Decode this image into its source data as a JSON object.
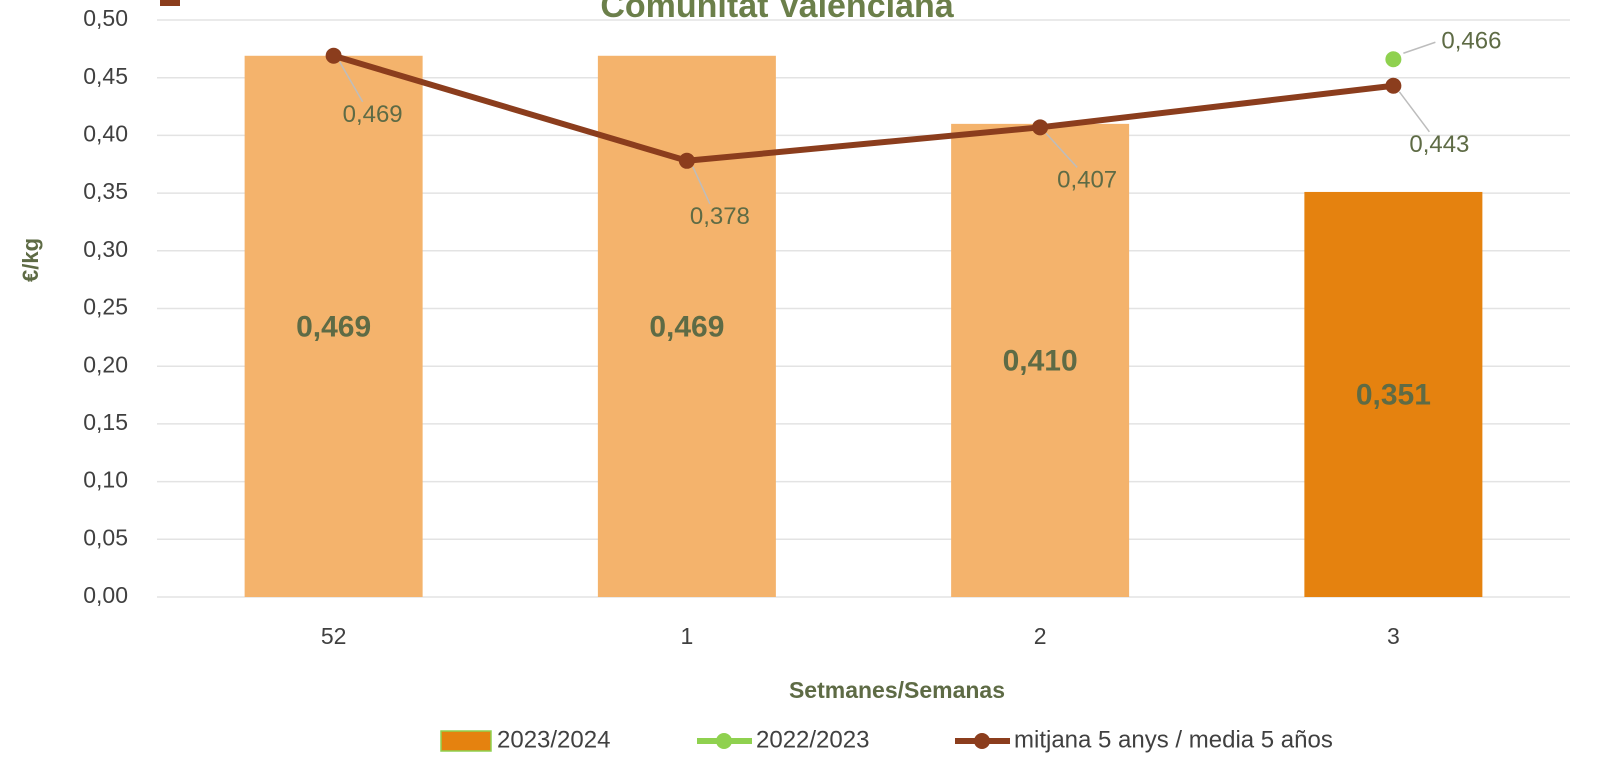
{
  "chart_data": {
    "type": "bar",
    "title": "Comunitat Valenciana",
    "x_label": "Setmanes/Semanas",
    "y_label": "€/kg",
    "categories": [
      "52",
      "1",
      "2",
      "3"
    ],
    "ylim": [
      0,
      0.5
    ],
    "yticks": [
      {
        "value": 0,
        "label": "0,00"
      },
      {
        "value": 0.05,
        "label": "0,05"
      },
      {
        "value": 0.1,
        "label": "0,10"
      },
      {
        "value": 0.15,
        "label": "0,15"
      },
      {
        "value": 0.2,
        "label": "0,20"
      },
      {
        "value": 0.25,
        "label": "0,25"
      },
      {
        "value": 0.3,
        "label": "0,30"
      },
      {
        "value": 0.35,
        "label": "0,35"
      },
      {
        "value": 0.4,
        "label": "0,40"
      },
      {
        "value": 0.45,
        "label": "0,45"
      },
      {
        "value": 0.5,
        "label": "0,50"
      }
    ],
    "grid": true,
    "series": [
      {
        "name": "2023/2024",
        "type": "bar",
        "color": "#e5820f",
        "colors": [
          "#f4b36c",
          "#f4b36c",
          "#f4b36c",
          "#e5820f"
        ],
        "values": [
          0.469,
          0.469,
          0.41,
          0.351
        ],
        "value_labels": [
          "0,469",
          "0,469",
          "0,410",
          "0,351"
        ]
      },
      {
        "name": "2022/2023",
        "type": "line",
        "color": "#8fd14f",
        "values": [
          null,
          null,
          null,
          0.466
        ],
        "value_labels": [
          null,
          null,
          null,
          "0,466"
        ]
      },
      {
        "name": "mitjana 5 anys / media 5 años",
        "type": "line",
        "color": "#8b3d1d",
        "values": [
          0.469,
          0.378,
          0.407,
          0.443
        ],
        "value_labels": [
          "0,469",
          "0,378",
          "0,407",
          "0,443"
        ]
      }
    ]
  }
}
